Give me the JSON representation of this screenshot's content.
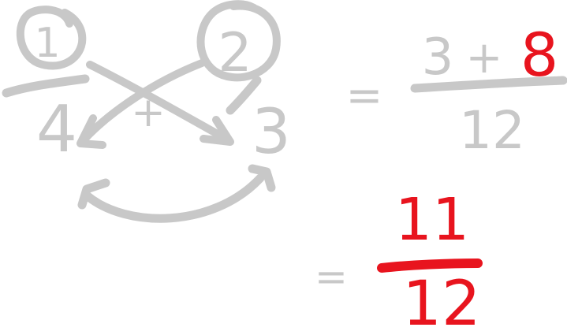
{
  "colors": {
    "ink_gray": "#c8c8c8",
    "ink_red": "#e8141e",
    "background": "#ffffff"
  },
  "left_fraction": {
    "numerator": "1",
    "denominator": "4"
  },
  "right_fraction": {
    "numerator": "2",
    "denominator": "3"
  },
  "plus_sign": "+",
  "step1": {
    "equals": "=",
    "numerator_first": "3",
    "plus": "+",
    "numerator_second": "8",
    "denominator": "12"
  },
  "step2": {
    "equals": "=",
    "numerator": "11",
    "denominator": "12"
  }
}
